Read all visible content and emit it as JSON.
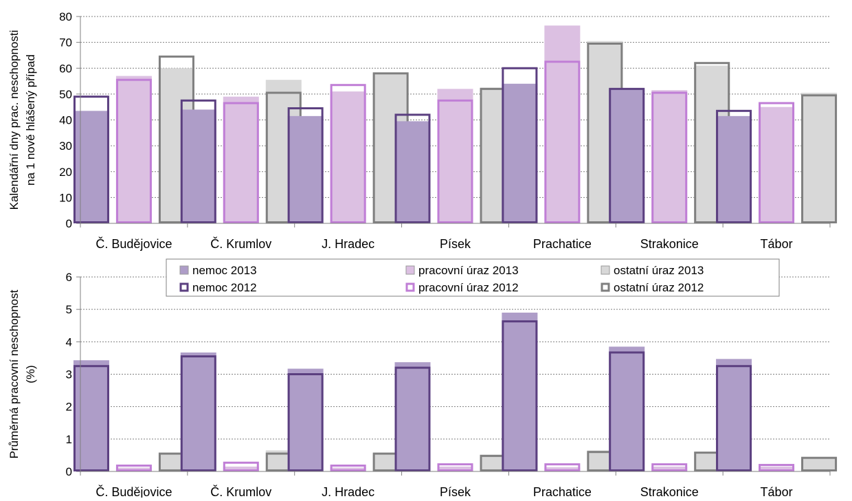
{
  "chart_data": [
    {
      "type": "bar",
      "ylabel_lines": [
        "Kalendářní dny prac. neschopnosti",
        "na 1 nově hlášený případ"
      ],
      "ylim": [
        0,
        80
      ],
      "yticks": [
        0,
        10,
        20,
        30,
        40,
        50,
        60,
        70,
        80
      ],
      "categories": [
        "Č. Budějovice",
        "Č. Krumlov",
        "J. Hradec",
        "Písek",
        "Prachatice",
        "Strakonice",
        "Tábor"
      ],
      "grid": true,
      "series": [
        {
          "name": "nemoc 2013",
          "values": [
            43.5,
            44,
            41.5,
            39.5,
            54,
            52,
            41.5
          ]
        },
        {
          "name": "pracovní úraz 2013",
          "values": [
            57,
            49,
            51,
            52,
            76.5,
            51.5,
            45
          ]
        },
        {
          "name": "ostatní úraz 2013",
          "values": [
            60,
            55.5,
            58,
            52.5,
            70.5,
            61,
            50.5
          ]
        },
        {
          "name": "nemoc 2012",
          "values": [
            49,
            47.5,
            44.5,
            42,
            60,
            52,
            43.5
          ]
        },
        {
          "name": "pracovní úraz 2012",
          "values": [
            55.5,
            46.5,
            53.5,
            47.5,
            62.5,
            50.5,
            46.5
          ]
        },
        {
          "name": "ostatní úraz 2012",
          "values": [
            64.5,
            50.5,
            58,
            52,
            69.5,
            62,
            49.5
          ]
        }
      ]
    },
    {
      "type": "bar",
      "ylabel_lines": [
        "Průměrná pracovní neschopnost",
        "(%)"
      ],
      "ylim": [
        0,
        6
      ],
      "yticks": [
        0,
        1,
        2,
        3,
        4,
        5,
        6
      ],
      "categories": [
        "Č. Budějovice",
        "Č. Krumlov",
        "J. Hradec",
        "Písek",
        "Prachatice",
        "Strakonice",
        "Tábor"
      ],
      "grid": true,
      "legend": "top-center",
      "series": [
        {
          "name": "nemoc 2013",
          "values": [
            3.43,
            3.67,
            3.17,
            3.37,
            4.9,
            3.85,
            3.47
          ]
        },
        {
          "name": "pracovní úraz 2013",
          "values": [
            0.12,
            0.15,
            0.12,
            0.15,
            0.13,
            0.15,
            0.15
          ]
        },
        {
          "name": "ostatní úraz 2013",
          "values": [
            0.55,
            0.65,
            0.55,
            0.52,
            0.65,
            0.6,
            0.42
          ]
        },
        {
          "name": "nemoc 2012",
          "values": [
            3.25,
            3.55,
            3.0,
            3.2,
            4.63,
            3.67,
            3.25
          ]
        },
        {
          "name": "pracovní úraz 2012",
          "values": [
            0.18,
            0.27,
            0.18,
            0.22,
            0.22,
            0.22,
            0.2
          ]
        },
        {
          "name": "ostatní úraz 2012",
          "values": [
            0.55,
            0.55,
            0.55,
            0.48,
            0.6,
            0.58,
            0.42
          ]
        }
      ]
    }
  ],
  "colors": {
    "nemoc_fill": "#ae9dc8",
    "nemoc_2012_edge": "#5b3f80",
    "pracovni_fill": "#dcc0e2",
    "pracovni_2012_edge": "#c07ed6",
    "ostatni_fill": "#d8d8d8",
    "ostatni_2012_edge": "#7f7f7f",
    "grid": "#7f7f7f"
  }
}
